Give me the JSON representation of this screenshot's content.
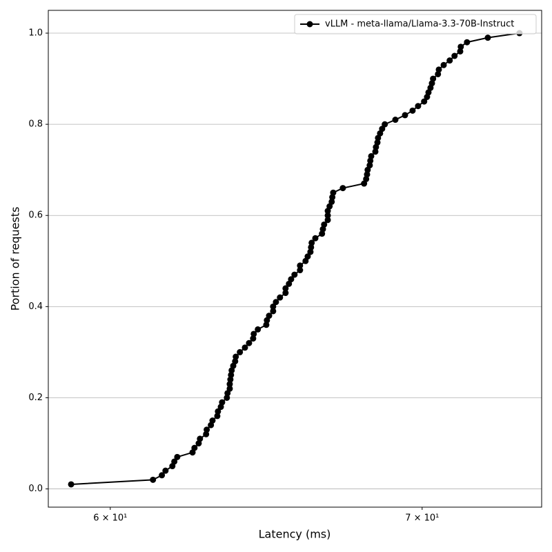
{
  "chart_data": {
    "type": "line",
    "x_label": "Latency (ms)",
    "y_label": "Portion of requests",
    "x_scale": "log",
    "grid_axis": "y",
    "legend_position": "upper right",
    "xlim": [
      58.19,
      74.26
    ],
    "ylim": [
      -0.04,
      1.05
    ],
    "xticks": [
      {
        "value": 60,
        "label": "6 × 10¹"
      },
      {
        "value": 70,
        "label": "7 × 10¹"
      }
    ],
    "yticks": [
      {
        "value": 0,
        "label": "0.0"
      },
      {
        "value": 0.2,
        "label": "0.2"
      },
      {
        "value": 0.4,
        "label": "0.4"
      },
      {
        "value": 0.6,
        "label": "0.6"
      },
      {
        "value": 0.8,
        "label": "0.8"
      },
      {
        "value": 1,
        "label": "1.0"
      }
    ],
    "series": [
      {
        "name": "vLLM - meta-llama/Llama-3.3-70B-Instruct",
        "color": "#000000",
        "x": [
          58.85,
          61.28,
          61.55,
          61.66,
          61.87,
          61.93,
          62.02,
          62.49,
          62.55,
          62.68,
          62.72,
          62.91,
          62.93,
          63.06,
          63.11,
          63.26,
          63.28,
          63.37,
          63.41,
          63.56,
          63.58,
          63.65,
          63.65,
          63.67,
          63.69,
          63.71,
          63.76,
          63.82,
          63.84,
          63.97,
          64.13,
          64.26,
          64.39,
          64.41,
          64.54,
          64.81,
          64.83,
          64.9,
          65.03,
          65.03,
          65.12,
          65.25,
          65.43,
          65.43,
          65.54,
          65.61,
          65.72,
          65.9,
          65.9,
          66.08,
          66.15,
          66.24,
          66.26,
          66.28,
          66.4,
          66.62,
          66.65,
          66.69,
          66.81,
          66.81,
          66.81,
          66.87,
          66.94,
          66.96,
          66.99,
          67.31,
          68.02,
          68.09,
          68.12,
          68.14,
          68.21,
          68.23,
          68.26,
          68.4,
          68.42,
          68.47,
          68.49,
          68.56,
          68.63,
          68.72,
          69.08,
          69.41,
          69.67,
          69.86,
          70.07,
          70.17,
          70.22,
          70.29,
          70.34,
          70.38,
          70.55,
          70.58,
          70.75,
          70.96,
          71.13,
          71.33,
          71.35,
          71.57,
          72.31,
          73.45
        ],
        "values": [
          0.01,
          0.02,
          0.03,
          0.04,
          0.05,
          0.06,
          0.07,
          0.08,
          0.09,
          0.1,
          0.11,
          0.12,
          0.13,
          0.14,
          0.15,
          0.16,
          0.17,
          0.18,
          0.19,
          0.2,
          0.21,
          0.22,
          0.23,
          0.24,
          0.25,
          0.26,
          0.27,
          0.28,
          0.29,
          0.3,
          0.31,
          0.32,
          0.33,
          0.34,
          0.35,
          0.36,
          0.37,
          0.38,
          0.39,
          0.4,
          0.41,
          0.42,
          0.43,
          0.44,
          0.45,
          0.46,
          0.47,
          0.48,
          0.49,
          0.5,
          0.51,
          0.52,
          0.53,
          0.54,
          0.55,
          0.56,
          0.57,
          0.58,
          0.59,
          0.6,
          0.61,
          0.62,
          0.63,
          0.64,
          0.65,
          0.66,
          0.67,
          0.68,
          0.69,
          0.7,
          0.71,
          0.72,
          0.73,
          0.74,
          0.75,
          0.76,
          0.77,
          0.78,
          0.79,
          0.8,
          0.81,
          0.82,
          0.83,
          0.84,
          0.85,
          0.86,
          0.87,
          0.88,
          0.89,
          0.9,
          0.91,
          0.92,
          0.93,
          0.94,
          0.95,
          0.96,
          0.97,
          0.98,
          0.99,
          1
        ]
      }
    ]
  }
}
